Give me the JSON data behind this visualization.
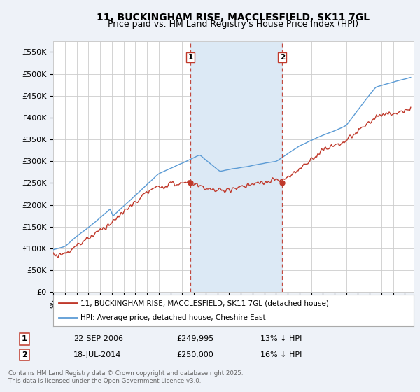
{
  "title": "11, BUCKINGHAM RISE, MACCLESFIELD, SK11 7GL",
  "subtitle": "Price paid vs. HM Land Registry's House Price Index (HPI)",
  "ylim": [
    0,
    575000
  ],
  "yticks": [
    0,
    50000,
    100000,
    150000,
    200000,
    250000,
    300000,
    350000,
    400000,
    450000,
    500000,
    550000
  ],
  "ytick_labels": [
    "£0",
    "£50K",
    "£100K",
    "£150K",
    "£200K",
    "£250K",
    "£300K",
    "£350K",
    "£400K",
    "£450K",
    "£500K",
    "£550K"
  ],
  "hpi_color": "#5b9bd5",
  "price_color": "#c0392b",
  "sale1_year": 2006.72,
  "sale1_price": 249995,
  "sale2_year": 2014.54,
  "sale2_price": 250000,
  "marker1_label": "22-SEP-2006",
  "marker2_label": "18-JUL-2014",
  "marker1_pct": "13% ↓ HPI",
  "marker2_pct": "16% ↓ HPI",
  "legend_line1": "11, BUCKINGHAM RISE, MACCLESFIELD, SK11 7GL (detached house)",
  "legend_line2": "HPI: Average price, detached house, Cheshire East",
  "footer": "Contains HM Land Registry data © Crown copyright and database right 2025.\nThis data is licensed under the Open Government Licence v3.0.",
  "bg_color": "#eef2f8",
  "plot_bg": "#ffffff",
  "grid_color": "#cccccc",
  "shaded_color": "#dce9f5",
  "title_fontsize": 10,
  "subtitle_fontsize": 9,
  "axis_fontsize": 8
}
